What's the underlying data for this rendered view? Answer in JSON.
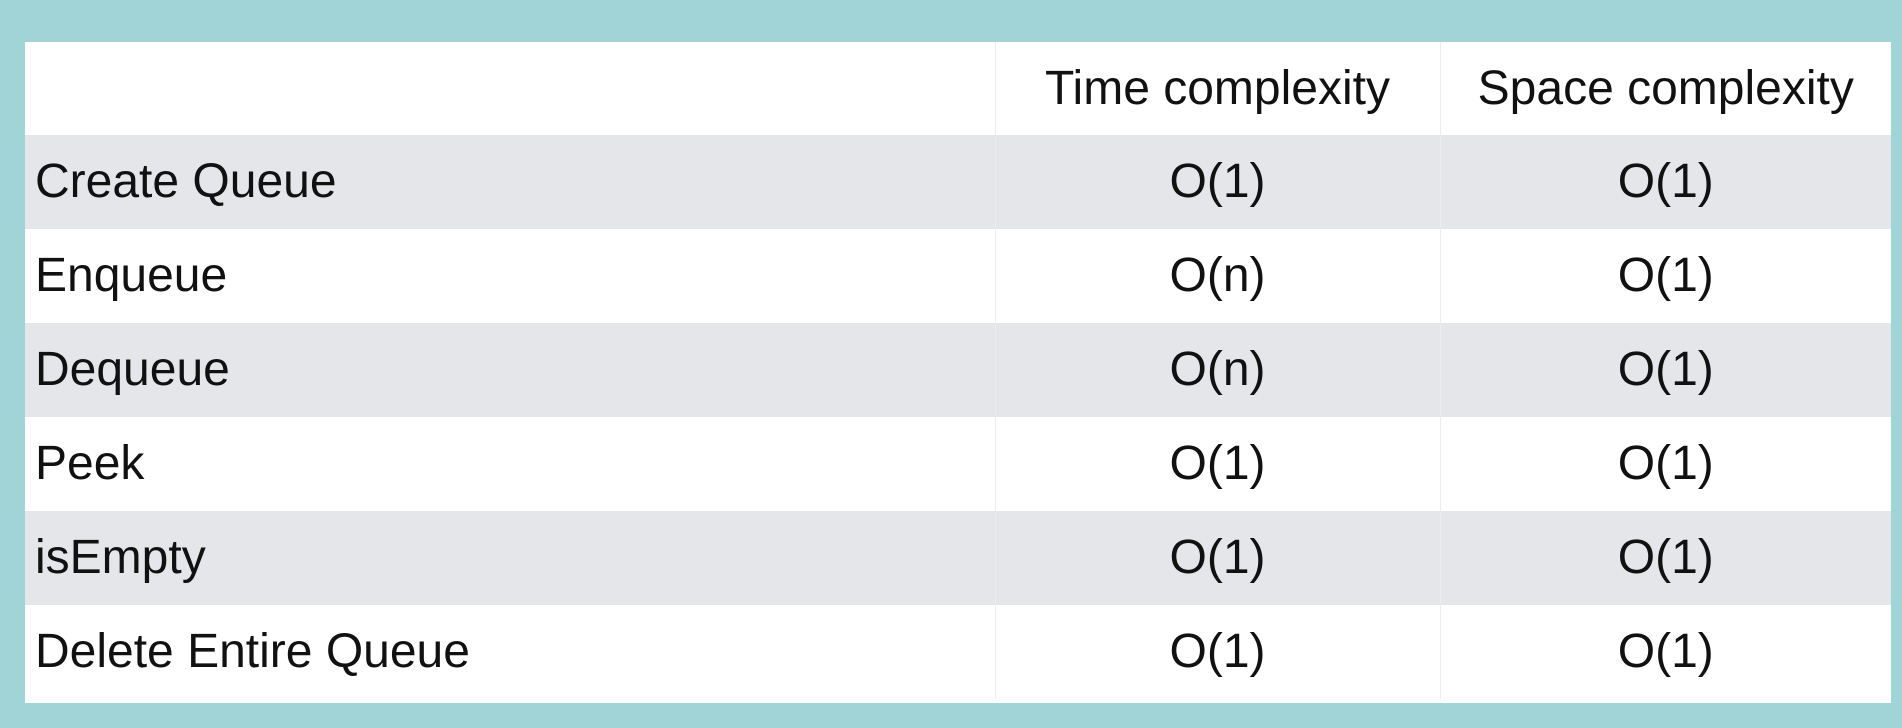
{
  "table": {
    "columns": [
      "",
      "Time complexity",
      "Space complexity"
    ],
    "rows": [
      {
        "operation": "Create Queue",
        "time": "O(1)",
        "space": "O(1)"
      },
      {
        "operation": "Enqueue",
        "time": "O(n)",
        "space": "O(1)"
      },
      {
        "operation": "Dequeue",
        "time": "O(n)",
        "space": "O(1)"
      },
      {
        "operation": "Peek",
        "time": "O(1)",
        "space": "O(1)"
      },
      {
        "operation": "isEmpty",
        "time": "O(1)",
        "space": "O(1)"
      },
      {
        "operation": "Delete Entire Queue",
        "time": "O(1)",
        "space": "O(1)"
      }
    ]
  },
  "colors": {
    "frame": "#a1d4d6",
    "shaded_row": "#e5e6e9",
    "plain_row": "#ffffff"
  }
}
